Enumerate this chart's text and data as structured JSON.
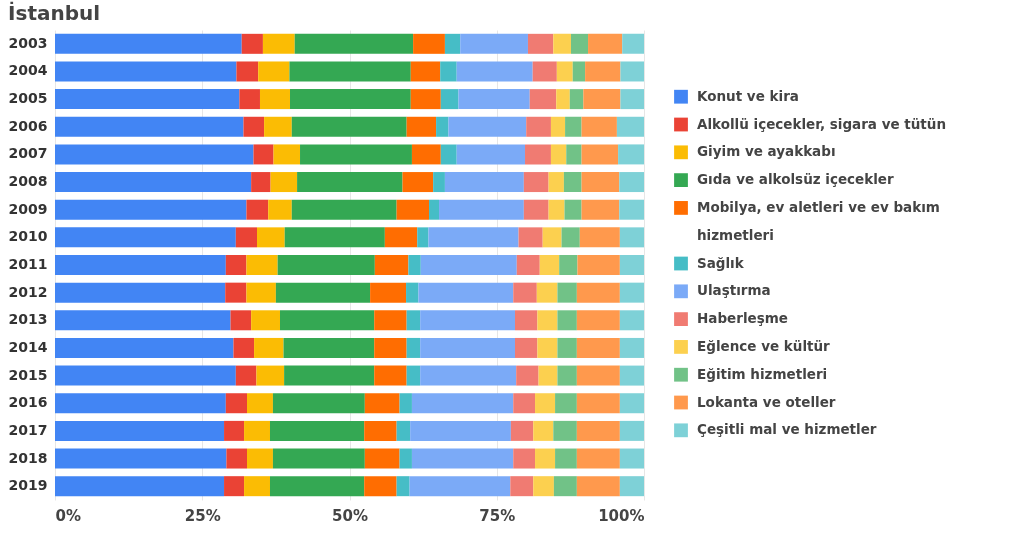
{
  "chart_data": {
    "type": "bar",
    "orientation": "horizontal",
    "stacked": true,
    "title": "İstanbul",
    "categories": [
      "2003",
      "2004",
      "2005",
      "2006",
      "2007",
      "2008",
      "2009",
      "2010",
      "2011",
      "2012",
      "2013",
      "2014",
      "2015",
      "2016",
      "2017",
      "2018",
      "2019"
    ],
    "xlim": [
      0,
      100
    ],
    "xticks": [
      {
        "value": 0,
        "label": "0%"
      },
      {
        "value": 25,
        "label": "25%"
      },
      {
        "value": 50,
        "label": "50%"
      },
      {
        "value": 75,
        "label": "75%"
      },
      {
        "value": 100,
        "label": "100%"
      }
    ],
    "grid": "x",
    "legend": "right",
    "series": [
      {
        "name": "Konut ve kira",
        "color": "#4285f4",
        "values": [
          31.7,
          30.8,
          31.3,
          32.0,
          33.7,
          33.3,
          32.5,
          30.7,
          29.0,
          28.9,
          29.8,
          30.3,
          30.7,
          29.0,
          28.7,
          29.1,
          28.7
        ]
      },
      {
        "name": "Alkollü içecekler, sigara ve tütün",
        "color": "#ea4335",
        "values": [
          3.6,
          3.7,
          3.5,
          3.5,
          3.4,
          3.3,
          3.7,
          3.6,
          3.5,
          3.6,
          3.5,
          3.5,
          3.5,
          3.6,
          3.4,
          3.5,
          3.4
        ]
      },
      {
        "name": "Giyim ve ayakkabı",
        "color": "#fbbc04",
        "values": [
          5.4,
          5.3,
          5.1,
          4.7,
          4.5,
          4.5,
          4.0,
          4.7,
          5.3,
          5.0,
          4.9,
          5.0,
          4.7,
          4.4,
          4.4,
          4.4,
          4.4
        ]
      },
      {
        "name": "Gıda ve alkolsüz içecekler",
        "color": "#34a853",
        "values": [
          20.1,
          20.6,
          20.5,
          19.5,
          19.0,
          17.9,
          17.8,
          17.0,
          16.5,
          16.0,
          16.0,
          15.4,
          15.3,
          15.6,
          16.0,
          15.6,
          16.0
        ]
      },
      {
        "name": "Mobilya, ev aletleri ve ev bakım hizmetleri",
        "color": "#ff6d01",
        "values": [
          5.4,
          5.0,
          5.1,
          5.0,
          4.9,
          5.2,
          5.5,
          5.5,
          5.7,
          6.1,
          5.5,
          5.5,
          5.5,
          5.9,
          5.5,
          5.9,
          5.5
        ]
      },
      {
        "name": "Sağlık",
        "color": "#46bdc6",
        "values": [
          2.6,
          2.8,
          3.0,
          2.1,
          2.7,
          2.0,
          1.7,
          1.9,
          2.1,
          2.1,
          2.3,
          2.3,
          2.3,
          2.1,
          2.3,
          2.1,
          2.2
        ]
      },
      {
        "name": "Ulaştırma",
        "color": "#7baaf7",
        "values": [
          11.5,
          12.9,
          12.1,
          13.2,
          11.6,
          13.4,
          14.4,
          15.3,
          16.3,
          16.1,
          16.1,
          16.1,
          16.3,
          17.2,
          17.1,
          17.2,
          17.1
        ]
      },
      {
        "name": "Haberleşme",
        "color": "#f07b72",
        "values": [
          4.3,
          4.1,
          4.5,
          4.2,
          4.4,
          4.2,
          4.2,
          4.1,
          3.9,
          4.0,
          3.8,
          3.8,
          3.8,
          3.7,
          3.8,
          3.7,
          3.9
        ]
      },
      {
        "name": "Eğlence ve kültür",
        "color": "#fcd04f",
        "values": [
          3.0,
          2.7,
          2.3,
          2.4,
          2.6,
          2.6,
          2.7,
          3.2,
          3.3,
          3.5,
          3.4,
          3.4,
          3.2,
          3.4,
          3.4,
          3.4,
          3.5
        ]
      },
      {
        "name": "Eğitim hizmetleri",
        "color": "#71c287",
        "values": [
          2.9,
          2.1,
          2.3,
          2.8,
          2.6,
          3.0,
          2.9,
          3.1,
          3.1,
          3.3,
          3.3,
          3.3,
          3.3,
          3.7,
          4.0,
          3.7,
          3.9
        ]
      },
      {
        "name": "Lokanta ve oteller",
        "color": "#ff994d",
        "values": [
          5.8,
          6.0,
          6.3,
          6.0,
          6.2,
          6.4,
          6.4,
          6.8,
          7.2,
          7.3,
          7.3,
          7.3,
          7.3,
          7.3,
          7.3,
          7.3,
          7.3
        ]
      },
      {
        "name": "Çeşitli mal ve hizmetler",
        "color": "#7ed1d7",
        "values": [
          3.7,
          4.0,
          4.0,
          4.6,
          4.4,
          4.2,
          4.2,
          4.1,
          4.1,
          4.1,
          4.1,
          4.1,
          4.1,
          4.1,
          4.1,
          4.1,
          4.1
        ]
      }
    ]
  }
}
